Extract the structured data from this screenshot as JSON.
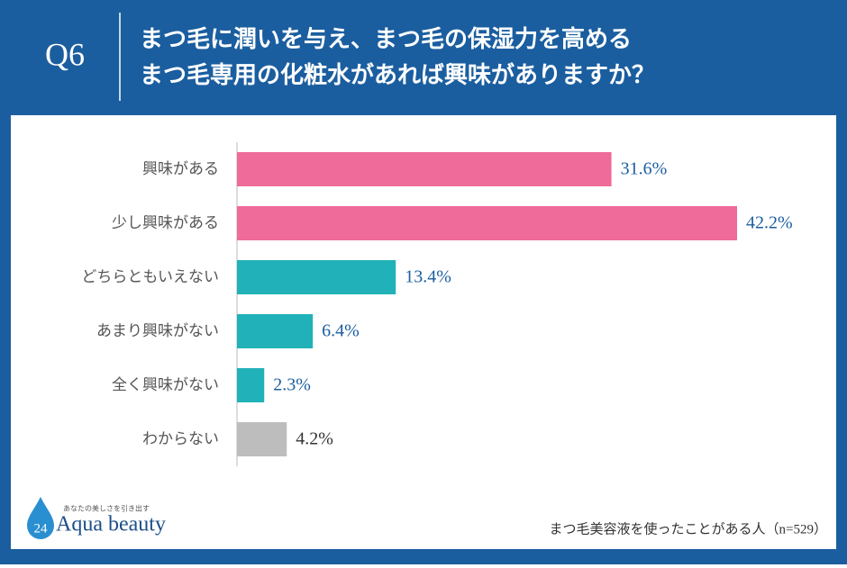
{
  "chart_data": {
    "type": "barh",
    "question": "Q6",
    "title": [
      "まつ毛に潤いを与え、まつ毛の保湿力を高める",
      "まつ毛専用の化粧水があれば興味がありますか？"
    ],
    "categories": [
      "興味がある",
      "少し興味がある",
      "どちらともいえない",
      "あまり興味がない",
      "全く興味がない",
      "わからない"
    ],
    "values": [
      31.6,
      42.2,
      13.4,
      6.4,
      2.3,
      4.2
    ],
    "value_labels": [
      "31.6%",
      "42.2%",
      "13.4%",
      "6.4%",
      "2.3%",
      "4.2%"
    ],
    "colors": [
      "#ee6b9a",
      "#ee6b9a",
      "#21b1b8",
      "#21b1b8",
      "#21b1b8",
      "#bdbdbd"
    ],
    "note": "まつ毛美容液を使ったことがある人（n=529）"
  },
  "brand": {
    "number": "24",
    "name": "Aqua beauty",
    "tagline": "あなたの美しさを引き出す"
  }
}
